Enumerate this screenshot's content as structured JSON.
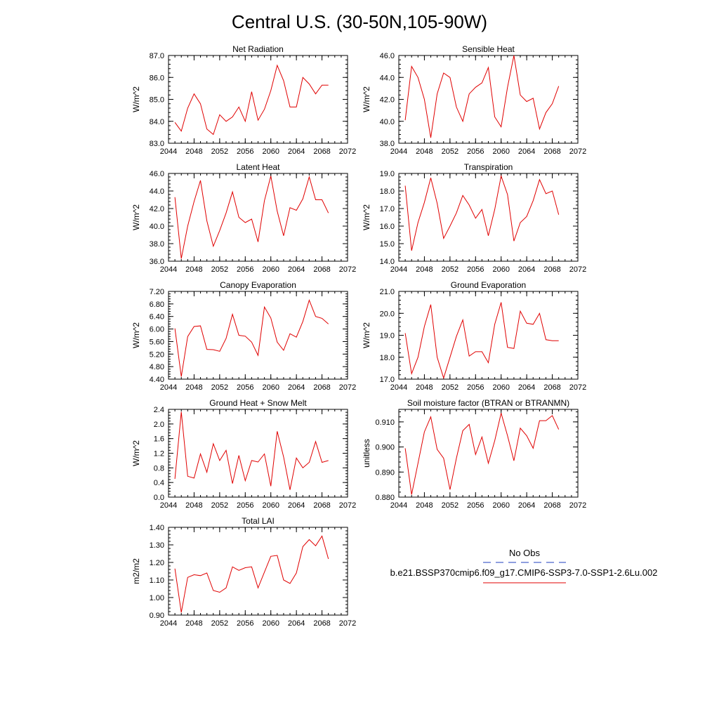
{
  "figure": {
    "title": "Central U.S. (30-50N,105-90W)"
  },
  "legend": {
    "items": [
      {
        "label": "No Obs",
        "color": "#1f3fbf",
        "dash": "dashed"
      },
      {
        "label": "b.e21.BSSP370cmip6.f09_g17.CMIP6-SSP3-7.0-SSP1-2.6Lu.002",
        "color": "#e00000",
        "dash": "solid"
      }
    ]
  },
  "chart_data": [
    {
      "type": "line",
      "title": "Net Radiation",
      "ylabel": "W/m^2",
      "xlim": [
        2044,
        2072
      ],
      "ylim": [
        83.0,
        87.0
      ],
      "xticks": [
        "2044",
        "2048",
        "2052",
        "2056",
        "2060",
        "2064",
        "2068",
        "2072"
      ],
      "yticks": [
        "83.0",
        "84.0",
        "85.0",
        "86.0",
        "87.0"
      ],
      "series": [
        {
          "color": "#e00000",
          "x": [
            2045,
            2046,
            2047,
            2048,
            2049,
            2050,
            2051,
            2052,
            2053,
            2054,
            2055,
            2056,
            2057,
            2058,
            2059,
            2060,
            2061,
            2062,
            2063,
            2064,
            2065,
            2066,
            2067,
            2068,
            2069
          ],
          "y": [
            83.95,
            83.55,
            84.6,
            85.25,
            84.8,
            83.65,
            83.4,
            84.3,
            84.0,
            84.2,
            84.65,
            84.0,
            85.35,
            84.05,
            84.55,
            85.4,
            86.55,
            85.85,
            84.65,
            84.65,
            86.0,
            85.7,
            85.25,
            85.65,
            85.65
          ]
        }
      ]
    },
    {
      "type": "line",
      "title": "Sensible Heat",
      "ylabel": "W/m^2",
      "xlim": [
        2044,
        2072
      ],
      "ylim": [
        38.0,
        46.0
      ],
      "xticks": [
        "2044",
        "2048",
        "2052",
        "2056",
        "2060",
        "2064",
        "2068",
        "2072"
      ],
      "yticks": [
        "38.0",
        "40.0",
        "42.0",
        "44.0",
        "46.0"
      ],
      "series": [
        {
          "color": "#e00000",
          "x": [
            2045,
            2046,
            2047,
            2048,
            2049,
            2050,
            2051,
            2052,
            2053,
            2054,
            2055,
            2056,
            2057,
            2058,
            2059,
            2060,
            2061,
            2062,
            2063,
            2064,
            2065,
            2066,
            2067,
            2068,
            2069
          ],
          "y": [
            40.1,
            45.0,
            44.0,
            42.0,
            38.5,
            42.5,
            44.4,
            44.0,
            41.3,
            40.0,
            42.5,
            43.1,
            43.5,
            44.9,
            40.4,
            39.5,
            43.1,
            46.0,
            42.4,
            41.8,
            42.1,
            39.3,
            40.8,
            41.6,
            43.2
          ]
        }
      ]
    },
    {
      "type": "line",
      "title": "Latent Heat",
      "ylabel": "W/m^2",
      "xlim": [
        2044,
        2072
      ],
      "ylim": [
        36.0,
        46.0
      ],
      "xticks": [
        "2044",
        "2048",
        "2052",
        "2056",
        "2060",
        "2064",
        "2068",
        "2072"
      ],
      "yticks": [
        "36.0",
        "38.0",
        "40.0",
        "42.0",
        "44.0",
        "46.0"
      ],
      "series": [
        {
          "color": "#e00000",
          "x": [
            2045,
            2046,
            2047,
            2048,
            2049,
            2050,
            2051,
            2052,
            2053,
            2054,
            2055,
            2056,
            2057,
            2058,
            2059,
            2060,
            2061,
            2062,
            2063,
            2064,
            2065,
            2066,
            2067,
            2068,
            2069
          ],
          "y": [
            43.3,
            36.3,
            40.0,
            42.8,
            45.2,
            40.6,
            37.7,
            39.5,
            41.5,
            43.9,
            41.0,
            40.4,
            40.8,
            38.2,
            42.9,
            45.7,
            41.7,
            38.9,
            42.1,
            41.8,
            43.1,
            45.6,
            43.0,
            43.0,
            41.5
          ]
        }
      ]
    },
    {
      "type": "line",
      "title": "Transpiration",
      "ylabel": "W/m^2",
      "xlim": [
        2044,
        2072
      ],
      "ylim": [
        14.0,
        19.0
      ],
      "xticks": [
        "2044",
        "2048",
        "2052",
        "2056",
        "2060",
        "2064",
        "2068",
        "2072"
      ],
      "yticks": [
        "14.0",
        "15.0",
        "16.0",
        "17.0",
        "18.0",
        "19.0"
      ],
      "series": [
        {
          "color": "#e00000",
          "x": [
            2045,
            2046,
            2047,
            2048,
            2049,
            2050,
            2051,
            2052,
            2053,
            2054,
            2055,
            2056,
            2057,
            2058,
            2059,
            2060,
            2061,
            2062,
            2063,
            2064,
            2065,
            2066,
            2067,
            2068,
            2069
          ],
          "y": [
            18.3,
            14.6,
            16.2,
            17.35,
            18.75,
            17.3,
            15.3,
            16.0,
            16.75,
            17.75,
            17.2,
            16.45,
            16.95,
            15.45,
            16.95,
            18.85,
            17.8,
            15.15,
            16.2,
            16.55,
            17.45,
            18.65,
            17.85,
            18.0,
            16.65
          ]
        }
      ]
    },
    {
      "type": "line",
      "title": "Canopy Evaporation",
      "ylabel": "W/m^2",
      "xlim": [
        2044,
        2072
      ],
      "ylim": [
        4.4,
        7.2
      ],
      "xticks": [
        "2044",
        "2048",
        "2052",
        "2056",
        "2060",
        "2064",
        "2068",
        "2072"
      ],
      "yticks": [
        "4.40",
        "4.80",
        "5.20",
        "5.60",
        "6.00",
        "6.40",
        "6.80",
        "7.20"
      ],
      "series": [
        {
          "color": "#e00000",
          "x": [
            2045,
            2046,
            2047,
            2048,
            2049,
            2050,
            2051,
            2052,
            2053,
            2054,
            2055,
            2056,
            2057,
            2058,
            2059,
            2060,
            2061,
            2062,
            2063,
            2064,
            2065,
            2066,
            2067,
            2068,
            2069
          ],
          "y": [
            6.02,
            4.48,
            5.76,
            6.08,
            6.1,
            5.35,
            5.34,
            5.29,
            5.7,
            6.47,
            5.8,
            5.77,
            5.58,
            5.16,
            6.7,
            6.35,
            5.58,
            5.32,
            5.85,
            5.74,
            6.24,
            6.92,
            6.4,
            6.34,
            6.16
          ]
        }
      ]
    },
    {
      "type": "line",
      "title": "Ground Evaporation",
      "ylabel": "W/m^2",
      "xlim": [
        2044,
        2072
      ],
      "ylim": [
        17.0,
        21.0
      ],
      "xticks": [
        "2044",
        "2048",
        "2052",
        "2056",
        "2060",
        "2064",
        "2068",
        "2072"
      ],
      "yticks": [
        "17.0",
        "18.0",
        "19.0",
        "20.0",
        "21.0"
      ],
      "series": [
        {
          "color": "#e00000",
          "x": [
            2045,
            2046,
            2047,
            2048,
            2049,
            2050,
            2051,
            2052,
            2053,
            2054,
            2055,
            2056,
            2057,
            2058,
            2059,
            2060,
            2061,
            2062,
            2063,
            2064,
            2065,
            2066,
            2067,
            2068,
            2069
          ],
          "y": [
            19.1,
            17.25,
            18.0,
            19.4,
            20.4,
            18.0,
            17.05,
            18.0,
            18.95,
            19.7,
            18.05,
            18.25,
            18.25,
            17.75,
            19.5,
            20.5,
            18.45,
            18.4,
            20.1,
            19.55,
            19.5,
            20.0,
            18.8,
            18.75,
            18.75
          ]
        }
      ]
    },
    {
      "type": "line",
      "title": "Ground Heat + Snow Melt",
      "ylabel": "W/m^2",
      "xlim": [
        2044,
        2072
      ],
      "ylim": [
        0.0,
        2.4
      ],
      "xticks": [
        "2044",
        "2048",
        "2052",
        "2056",
        "2060",
        "2064",
        "2068",
        "2072"
      ],
      "yticks": [
        "0.0",
        "0.4",
        "0.8",
        "1.2",
        "1.6",
        "2.0",
        "2.4"
      ],
      "series": [
        {
          "color": "#e00000",
          "x": [
            2045,
            2046,
            2047,
            2048,
            2049,
            2050,
            2051,
            2052,
            2053,
            2054,
            2055,
            2056,
            2057,
            2058,
            2059,
            2060,
            2061,
            2062,
            2063,
            2064,
            2065,
            2066,
            2067,
            2068,
            2069
          ],
          "y": [
            0.5,
            2.33,
            0.57,
            0.52,
            1.18,
            0.68,
            1.46,
            1.0,
            1.28,
            0.37,
            1.14,
            0.45,
            1.0,
            0.96,
            1.18,
            0.3,
            1.8,
            1.1,
            0.2,
            1.07,
            0.8,
            0.95,
            1.52,
            0.95,
            1.0
          ]
        }
      ]
    },
    {
      "type": "line",
      "title": "Soil moisture factor (BTRAN or BTRANMN)",
      "ylabel": "unitless",
      "xlim": [
        2044,
        2072
      ],
      "ylim": [
        0.88,
        0.915
      ],
      "xticks": [
        "2044",
        "2048",
        "2052",
        "2056",
        "2060",
        "2064",
        "2068",
        "2072"
      ],
      "yticks": [
        "0.880",
        "0.890",
        "0.900",
        "0.910"
      ],
      "series": [
        {
          "color": "#e00000",
          "x": [
            2045,
            2046,
            2047,
            2048,
            2049,
            2050,
            2051,
            2052,
            2053,
            2054,
            2055,
            2056,
            2057,
            2058,
            2059,
            2060,
            2061,
            2062,
            2063,
            2064,
            2065,
            2066,
            2067,
            2068,
            2069
          ],
          "y": [
            0.8995,
            0.881,
            0.8935,
            0.906,
            0.912,
            0.899,
            0.8955,
            0.883,
            0.8955,
            0.9065,
            0.909,
            0.897,
            0.904,
            0.8935,
            0.9025,
            0.9135,
            0.9045,
            0.8945,
            0.9075,
            0.9045,
            0.8995,
            0.9105,
            0.9105,
            0.9125,
            0.907
          ]
        }
      ]
    },
    {
      "type": "line",
      "title": "Total LAI",
      "ylabel": "m2/m2",
      "xlim": [
        2044,
        2072
      ],
      "ylim": [
        0.9,
        1.4
      ],
      "xticks": [
        "2044",
        "2048",
        "2052",
        "2056",
        "2060",
        "2064",
        "2068",
        "2072"
      ],
      "yticks": [
        "0.90",
        "1.00",
        "1.10",
        "1.20",
        "1.30",
        "1.40"
      ],
      "series": [
        {
          "color": "#e00000",
          "x": [
            2045,
            2046,
            2047,
            2048,
            2049,
            2050,
            2051,
            2052,
            2053,
            2054,
            2055,
            2056,
            2057,
            2058,
            2059,
            2060,
            2061,
            2062,
            2063,
            2064,
            2065,
            2066,
            2067,
            2068,
            2069
          ],
          "y": [
            1.165,
            0.915,
            1.115,
            1.13,
            1.125,
            1.14,
            1.04,
            1.03,
            1.055,
            1.175,
            1.155,
            1.17,
            1.175,
            1.055,
            1.145,
            1.235,
            1.24,
            1.1,
            1.08,
            1.14,
            1.29,
            1.33,
            1.295,
            1.35,
            1.22
          ]
        }
      ]
    }
  ]
}
